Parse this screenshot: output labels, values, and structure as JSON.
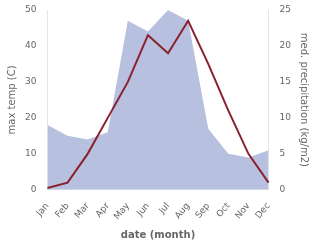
{
  "chart_data": {
    "type": "line",
    "categories": [
      "Jan",
      "Feb",
      "Mar",
      "Apr",
      "May",
      "Jun",
      "Jul",
      "Aug",
      "Sep",
      "Oct",
      "Nov",
      "Dec"
    ],
    "xlabel": "date (month)",
    "ylabel": "max temp (C)",
    "y2label": "med. precipitation (kg/m2)",
    "ylim": [
      0,
      50
    ],
    "yticks": [
      0,
      10,
      20,
      30,
      40,
      50
    ],
    "y2lim": [
      0,
      25
    ],
    "y2ticks": [
      0,
      5,
      10,
      15,
      20,
      25
    ],
    "grid": false,
    "series": [
      {
        "type": "area",
        "axis": "y2",
        "color": "#b8c0e0",
        "values": [
          9.0,
          7.5,
          7.0,
          8.0,
          23.5,
          22.0,
          25.0,
          23.5,
          8.5,
          5.0,
          4.5,
          5.5
        ]
      },
      {
        "type": "line",
        "color": "#8b2030",
        "values": [
          0.5,
          2.0,
          10.0,
          20.0,
          30.0,
          43.0,
          38.0,
          47.0,
          35.0,
          22.0,
          10.0,
          2.0
        ]
      }
    ]
  }
}
